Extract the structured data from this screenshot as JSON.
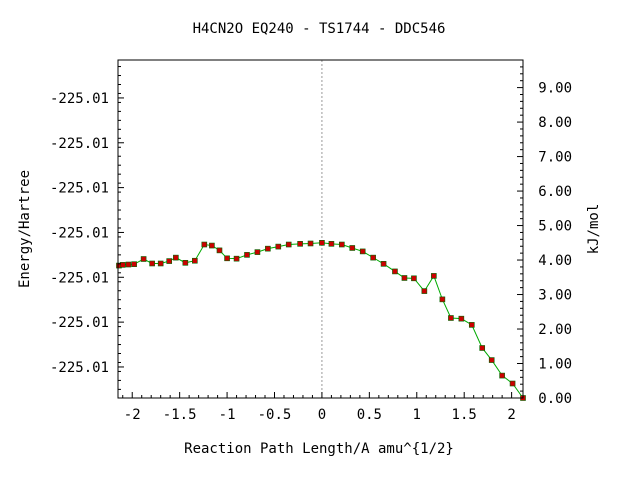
{
  "chart_data": {
    "type": "line",
    "title": "H4CN2O   EQ240 - TS1744 - DDC546",
    "xlabel": "Reaction Path Length/A amu^{1/2}",
    "ylabel_left": "Energy/Hartree",
    "ylabel_right": "kJ/mol",
    "xlim": [
      -2.15,
      2.12
    ],
    "ylim_right": [
      0.0,
      9.8
    ],
    "x_ticks": [
      -2,
      -1.5,
      -1,
      -0.5,
      0,
      0.5,
      1,
      1.5,
      2
    ],
    "x_tick_labels": [
      "-2",
      "-1.5",
      "-1",
      "-0.5",
      "0",
      "0.5",
      "1",
      "1.5",
      "2"
    ],
    "left_ticks": [
      0.9,
      2.2,
      3.5,
      4.8,
      6.1,
      7.4,
      8.7
    ],
    "left_tick_labels": [
      "-225.01",
      "-225.01",
      "-225.01",
      "-225.01",
      "-225.01",
      "-225.01",
      "-225.01"
    ],
    "right_ticks": [
      0,
      1,
      2,
      3,
      4,
      5,
      6,
      7,
      8,
      9
    ],
    "right_tick_labels": [
      "0.00",
      "1.00",
      "2.00",
      "3.00",
      "4.00",
      "5.00",
      "6.00",
      "7.00",
      "8.00",
      "9.00"
    ],
    "ts_line_x": 0,
    "series": [
      {
        "line_color": "#00aa00",
        "marker_color": "#cc0000",
        "points": [
          [
            -2.14,
            3.84
          ],
          [
            -2.1,
            3.86
          ],
          [
            -2.04,
            3.87
          ],
          [
            -1.98,
            3.88
          ],
          [
            -1.88,
            4.03
          ],
          [
            -1.79,
            3.9
          ],
          [
            -1.7,
            3.9
          ],
          [
            -1.61,
            3.97
          ],
          [
            -1.54,
            4.07
          ],
          [
            -1.44,
            3.92
          ],
          [
            -1.34,
            3.98
          ],
          [
            -1.24,
            4.45
          ],
          [
            -1.16,
            4.42
          ],
          [
            -1.08,
            4.28
          ],
          [
            -1.0,
            4.05
          ],
          [
            -0.9,
            4.04
          ],
          [
            -0.79,
            4.15
          ],
          [
            -0.68,
            4.23
          ],
          [
            -0.57,
            4.33
          ],
          [
            -0.46,
            4.39
          ],
          [
            -0.35,
            4.45
          ],
          [
            -0.23,
            4.47
          ],
          [
            -0.12,
            4.48
          ],
          [
            0.0,
            4.5
          ],
          [
            0.1,
            4.47
          ],
          [
            0.21,
            4.45
          ],
          [
            0.32,
            4.35
          ],
          [
            0.43,
            4.25
          ],
          [
            0.54,
            4.07
          ],
          [
            0.65,
            3.89
          ],
          [
            0.77,
            3.67
          ],
          [
            0.87,
            3.48
          ],
          [
            0.97,
            3.47
          ],
          [
            1.08,
            3.1
          ],
          [
            1.18,
            3.54
          ],
          [
            1.27,
            2.86
          ],
          [
            1.36,
            2.32
          ],
          [
            1.47,
            2.3
          ],
          [
            1.58,
            2.12
          ],
          [
            1.69,
            1.45
          ],
          [
            1.79,
            1.1
          ],
          [
            1.9,
            0.65
          ],
          [
            2.01,
            0.42
          ],
          [
            2.12,
            0.0
          ]
        ]
      }
    ]
  }
}
